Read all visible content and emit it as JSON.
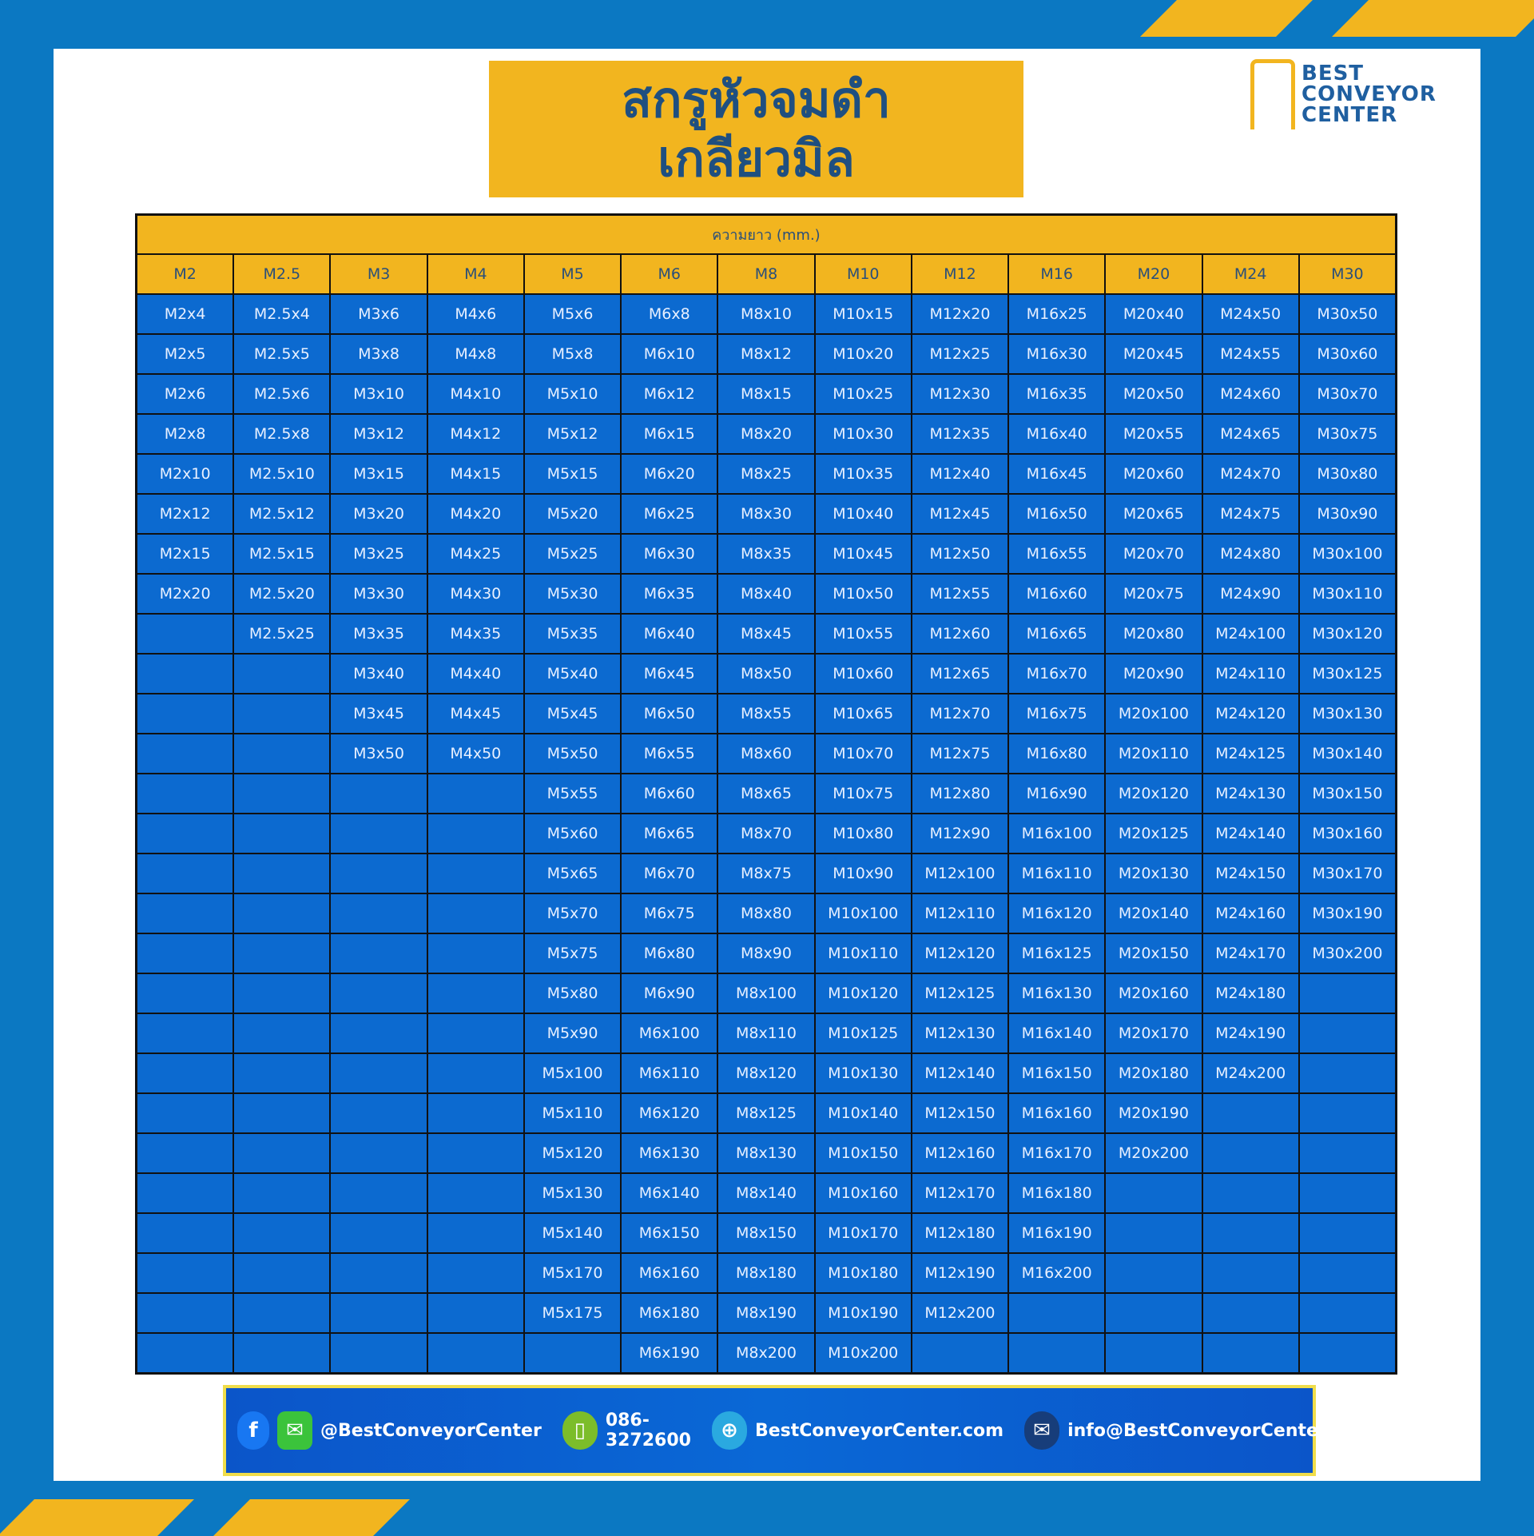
{
  "title": {
    "line1": "สกรูหัวจมดำ",
    "line2": "เกลียวมิล"
  },
  "logo": {
    "line1": "BEST",
    "line2": "CONVEYOR",
    "line3": "CENTER"
  },
  "table": {
    "length_header": "ความยาว (mm.)",
    "columns": [
      {
        "size": "M2",
        "items": [
          "M2x4",
          "M2x5",
          "M2x6",
          "M2x8",
          "M2x10",
          "M2x12",
          "M2x15",
          "M2x20"
        ]
      },
      {
        "size": "M2.5",
        "items": [
          "M2.5x4",
          "M2.5x5",
          "M2.5x6",
          "M2.5x8",
          "M2.5x10",
          "M2.5x12",
          "M2.5x15",
          "M2.5x20",
          "M2.5x25"
        ]
      },
      {
        "size": "M3",
        "items": [
          "M3x6",
          "M3x8",
          "M3x10",
          "M3x12",
          "M3x15",
          "M3x20",
          "M3x25",
          "M3x30",
          "M3x35",
          "M3x40",
          "M3x45",
          "M3x50"
        ]
      },
      {
        "size": "M4",
        "items": [
          "M4x6",
          "M4x8",
          "M4x10",
          "M4x12",
          "M4x15",
          "M4x20",
          "M4x25",
          "M4x30",
          "M4x35",
          "M4x40",
          "M4x45",
          "M4x50"
        ]
      },
      {
        "size": "M5",
        "items": [
          "M5x6",
          "M5x8",
          "M5x10",
          "M5x12",
          "M5x15",
          "M5x20",
          "M5x25",
          "M5x30",
          "M5x35",
          "M5x40",
          "M5x45",
          "M5x50",
          "M5x55",
          "M5x60",
          "M5x65",
          "M5x70",
          "M5x75",
          "M5x80",
          "M5x90",
          "M5x100",
          "M5x110",
          "M5x120",
          "M5x130",
          "M5x140",
          "M5x170",
          "M5x175"
        ]
      },
      {
        "size": "M6",
        "items": [
          "M6x8",
          "M6x10",
          "M6x12",
          "M6x15",
          "M6x20",
          "M6x25",
          "M6x30",
          "M6x35",
          "M6x40",
          "M6x45",
          "M6x50",
          "M6x55",
          "M6x60",
          "M6x65",
          "M6x70",
          "M6x75",
          "M6x80",
          "M6x90",
          "M6x100",
          "M6x110",
          "M6x120",
          "M6x130",
          "M6x140",
          "M6x150",
          "M6x160",
          "M6x180",
          "M6x190"
        ]
      },
      {
        "size": "M8",
        "items": [
          "M8x10",
          "M8x12",
          "M8x15",
          "M8x20",
          "M8x25",
          "M8x30",
          "M8x35",
          "M8x40",
          "M8x45",
          "M8x50",
          "M8x55",
          "M8x60",
          "M8x65",
          "M8x70",
          "M8x75",
          "M8x80",
          "M8x90",
          "M8x100",
          "M8x110",
          "M8x120",
          "M8x125",
          "M8x130",
          "M8x140",
          "M8x150",
          "M8x180",
          "M8x190",
          "M8x200"
        ]
      },
      {
        "size": "M10",
        "items": [
          "M10x15",
          "M10x20",
          "M10x25",
          "M10x30",
          "M10x35",
          "M10x40",
          "M10x45",
          "M10x50",
          "M10x55",
          "M10x60",
          "M10x65",
          "M10x70",
          "M10x75",
          "M10x80",
          "M10x90",
          "M10x100",
          "M10x110",
          "M10x120",
          "M10x125",
          "M10x130",
          "M10x140",
          "M10x150",
          "M10x160",
          "M10x170",
          "M10x180",
          "M10x190",
          "M10x200"
        ]
      },
      {
        "size": "M12",
        "items": [
          "M12x20",
          "M12x25",
          "M12x30",
          "M12x35",
          "M12x40",
          "M12x45",
          "M12x50",
          "M12x55",
          "M12x60",
          "M12x65",
          "M12x70",
          "M12x75",
          "M12x80",
          "M12x90",
          "M12x100",
          "M12x110",
          "M12x120",
          "M12x125",
          "M12x130",
          "M12x140",
          "M12x150",
          "M12x160",
          "M12x170",
          "M12x180",
          "M12x190",
          "M12x200"
        ]
      },
      {
        "size": "M16",
        "items": [
          "M16x25",
          "M16x30",
          "M16x35",
          "M16x40",
          "M16x45",
          "M16x50",
          "M16x55",
          "M16x60",
          "M16x65",
          "M16x70",
          "M16x75",
          "M16x80",
          "M16x90",
          "M16x100",
          "M16x110",
          "M16x120",
          "M16x125",
          "M16x130",
          "M16x140",
          "M16x150",
          "M16x160",
          "M16x170",
          "M16x180",
          "M16x190",
          "M16x200"
        ]
      },
      {
        "size": "M20",
        "items": [
          "M20x40",
          "M20x45",
          "M20x50",
          "M20x55",
          "M20x60",
          "M20x65",
          "M20x70",
          "M20x75",
          "M20x80",
          "M20x90",
          "M20x100",
          "M20x110",
          "M20x120",
          "M20x125",
          "M20x130",
          "M20x140",
          "M20x150",
          "M20x160",
          "M20x170",
          "M20x180",
          "M20x190",
          "M20x200"
        ]
      },
      {
        "size": "M24",
        "items": [
          "M24x50",
          "M24x55",
          "M24x60",
          "M24x65",
          "M24x70",
          "M24x75",
          "M24x80",
          "M24x90",
          "M24x100",
          "M24x110",
          "M24x120",
          "M24x125",
          "M24x130",
          "M24x140",
          "M24x150",
          "M24x160",
          "M24x170",
          "M24x180",
          "M24x190",
          "M24x200"
        ]
      },
      {
        "size": "M30",
        "items": [
          "M30x50",
          "M30x60",
          "M30x70",
          "M30x75",
          "M30x80",
          "M30x90",
          "M30x100",
          "M30x110",
          "M30x120",
          "M30x125",
          "M30x130",
          "M30x140",
          "M30x150",
          "M30x160",
          "M30x170",
          "M30x190",
          "M30x200"
        ]
      }
    ]
  },
  "footer": {
    "social": "@BestConveyorCenter",
    "phone": "086-3272600",
    "website": "BestConveyorCenter.com",
    "email": "info@BestConveyorCenter.com"
  },
  "colors": {
    "blue": "#0b78c2",
    "yellow": "#f2b51f",
    "cell": "#0c6ad0",
    "title": "#1f4f80"
  }
}
